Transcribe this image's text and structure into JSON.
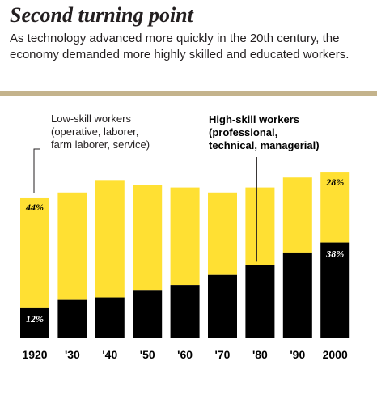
{
  "title": "Second turning point",
  "subtitle": "As technology advanced more quickly in the 20th century, the economy demanded more highly skilled and educated workers.",
  "annotations": {
    "low_skill": [
      "Low-skill workers",
      "(operative, laborer,",
      "farm laborer, service)"
    ],
    "high_skill": [
      "High-skill workers",
      "(professional,",
      "technical, managerial)"
    ]
  },
  "colors": {
    "low_skill": "#ffe033",
    "high_skill": "#000000",
    "rule": "#c4b38c"
  },
  "chart_data": {
    "type": "bar",
    "stacked": true,
    "categories": [
      "1920",
      "'30",
      "'40",
      "'50",
      "'60",
      "'70",
      "'80",
      "'90",
      "2000"
    ],
    "series": [
      {
        "name": "High-skill workers",
        "values": [
          12,
          15,
          16,
          19,
          21,
          25,
          29,
          34,
          38
        ]
      },
      {
        "name": "Low-skill workers",
        "values": [
          44,
          43,
          47,
          42,
          39,
          33,
          31,
          30,
          28
        ]
      }
    ],
    "data_labels": [
      {
        "category": "1920",
        "series": "Low-skill workers",
        "text": "44%"
      },
      {
        "category": "1920",
        "series": "High-skill workers",
        "text": "12%"
      },
      {
        "category": "2000",
        "series": "Low-skill workers",
        "text": "28%"
      },
      {
        "category": "2000",
        "series": "High-skill workers",
        "text": "38%"
      }
    ],
    "ylim": [
      0,
      66
    ],
    "grid": false
  }
}
